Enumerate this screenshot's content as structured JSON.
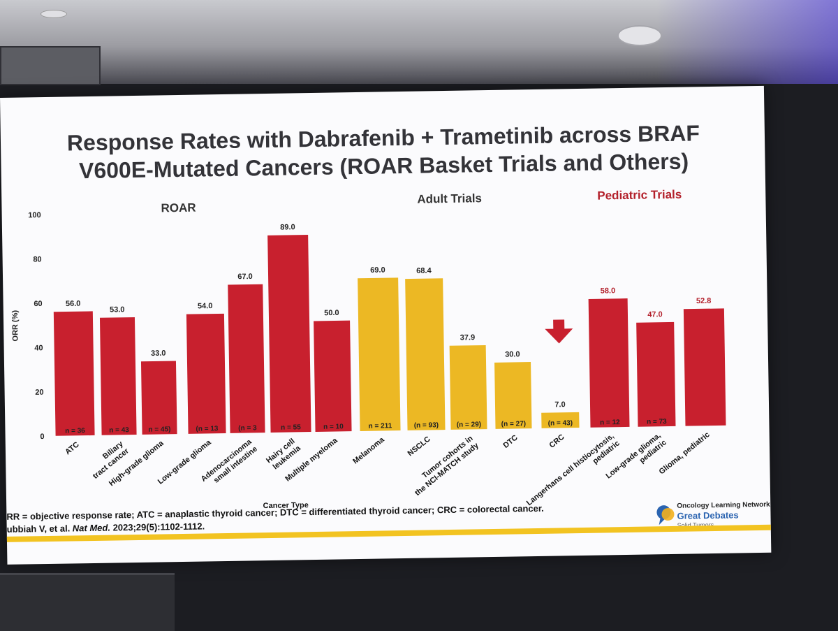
{
  "slide": {
    "title_line1": "Response Rates with Dabrafenib + Trametinib across BRAF",
    "title_line2": "V600E-Mutated Cancers (ROAR Basket Trials and Others)",
    "sections": [
      "ROAR",
      "Adult Trials",
      "Pediatric Trials"
    ],
    "footnote_line1": "RR = objective response rate; ATC = anaplastic thyroid cancer; DTC = differentiated thyroid cancer; CRC = colorectal cancer.",
    "footnote_line2_prefix": "ubbiah V, et al. ",
    "footnote_line2_journal": "Nat Med.",
    "footnote_line2_suffix": " 2023;29(5):1102-1112.",
    "logo_line1": "Oncology Learning Network",
    "logo_line2": "Great Debates",
    "logo_line3": "Solid Tumors"
  },
  "chart_data": {
    "type": "bar",
    "ylabel": "ORR (%)",
    "xlabel": "Cancer Type",
    "ylim": [
      0,
      100
    ],
    "yticks": [
      0,
      20,
      40,
      60,
      80,
      100
    ],
    "colors": {
      "roar": "#c8202e",
      "adult": "#ecb824",
      "pediatric": "#c8202e"
    },
    "categories": [
      "ATC",
      "Biliary tract cancer",
      "High-grade glioma",
      "Low-grade glioma",
      "Adenocarcinoma small intestine",
      "Hairy cell leukemia",
      "Multiple myeloma",
      "Melanoma",
      "NSCLC",
      "Tumor cohorts in the NCI-MATCH study",
      "DTC",
      "CRC",
      "Langerhans cell histiocytosis, pediatric",
      "Low-grade glioma, pediatric",
      "Glioma, pediatric"
    ],
    "groups": [
      "roar",
      "roar",
      "roar",
      "roar",
      "roar",
      "roar",
      "roar",
      "adult",
      "adult",
      "adult",
      "adult",
      "adult",
      "pediatric",
      "pediatric",
      "pediatric"
    ],
    "values": [
      56.0,
      53.0,
      33.0,
      54.0,
      67.0,
      89.0,
      50.0,
      69.0,
      68.4,
      37.9,
      30.0,
      7.0,
      58.0,
      47.0,
      52.8
    ],
    "value_labels": [
      "56.0",
      "53.0",
      "33.0",
      "54.0",
      "67.0",
      "89.0",
      "50.0",
      "69.0",
      "68.4",
      "37.9",
      "30.0",
      "7.0",
      "58.0",
      "47.0",
      "52.8"
    ],
    "n_labels": [
      "n = 36",
      "n = 43",
      "n = 45)",
      "(n = 13",
      "(n = 3",
      "n = 55",
      "n = 10",
      "n = 211",
      "(n = 93)",
      "(n = 29)",
      "(n = 27)",
      "(n = 43)",
      "n = 12",
      "n = 73",
      ""
    ],
    "annotation": "down-arrow above CRC"
  }
}
